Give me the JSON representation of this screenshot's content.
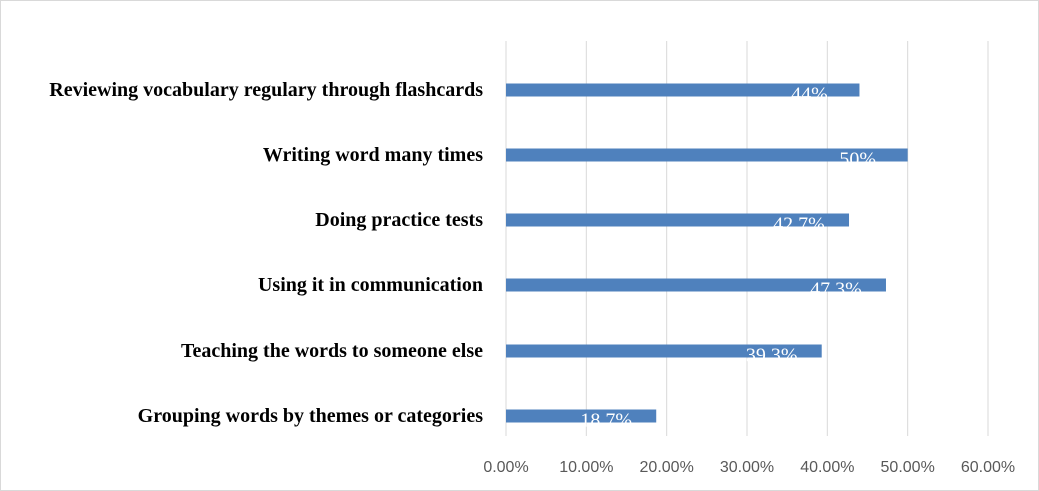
{
  "chart_data": {
    "type": "bar",
    "orientation": "horizontal",
    "categories": [
      "Reviewing vocabulary regulary through flashcards",
      "Writing word many times",
      "Doing practice tests",
      "Using it in communication",
      "Teaching the words to someone else",
      "Grouping words by themes or categories"
    ],
    "values": [
      44,
      50,
      42.7,
      47.3,
      39.3,
      18.7
    ],
    "value_labels": [
      "44%",
      "50%",
      "42.7%",
      "47.3%",
      "39.3%",
      "18.7%"
    ],
    "color": "#4f81bd",
    "xlim": [
      0,
      60
    ],
    "xticks": [
      {
        "value": 0,
        "label": "0.00%"
      },
      {
        "value": 10,
        "label": "10.00%"
      },
      {
        "value": 20,
        "label": "20.00%"
      },
      {
        "value": 30,
        "label": "30.00%"
      },
      {
        "value": 40,
        "label": "40.00%"
      },
      {
        "value": 50,
        "label": "50.00%"
      },
      {
        "value": 60,
        "label": "60.00%"
      }
    ],
    "grid": true
  }
}
